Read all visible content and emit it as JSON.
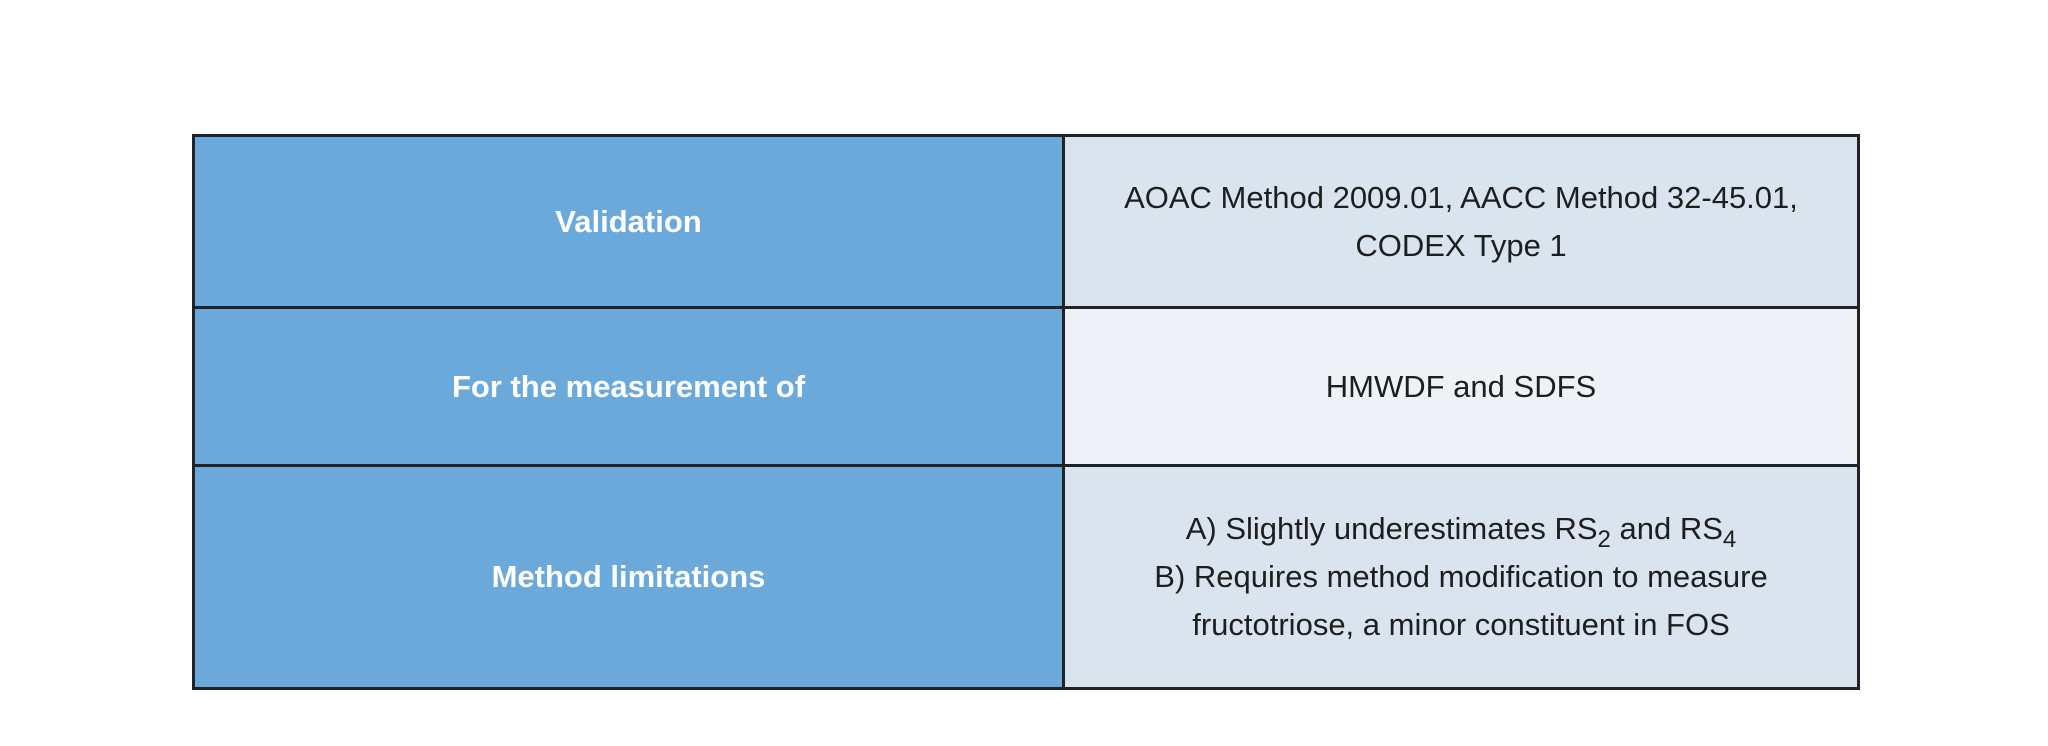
{
  "table": {
    "rows": [
      {
        "label": "Validation",
        "lines": [
          "AOAC Method 2009.01, AACC Method 32-45.01,",
          "CODEX Type 1"
        ]
      },
      {
        "label": "For the measurement of",
        "lines": [
          "HMWDF and SDFS"
        ]
      },
      {
        "label": "Method limitations",
        "line_a": {
          "prefix": "A) Slightly underestimates RS",
          "sub1": "2",
          "mid": " and RS",
          "sub2": "4"
        },
        "lines": [
          "B) Requires method modification to measure",
          "fructotriose, a minor constituent in FOS"
        ]
      }
    ]
  },
  "colors": {
    "label_bg": "#6aa9d9",
    "value_bg_dark": "#dae4ef",
    "value_bg_light": "#eef2f6",
    "border": "#1f2328"
  }
}
